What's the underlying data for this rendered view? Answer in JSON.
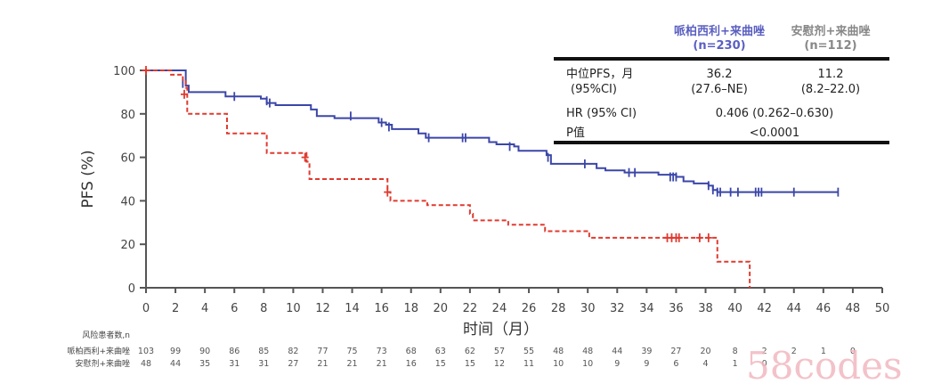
{
  "chart_data": {
    "type": "line",
    "title": "",
    "xlabel": "时间（月）",
    "ylabel": "PFS (%)",
    "xlim": [
      0,
      50
    ],
    "ylim": [
      0,
      100
    ],
    "x_ticks": [
      0,
      2,
      4,
      6,
      8,
      10,
      12,
      14,
      16,
      18,
      20,
      22,
      24,
      26,
      28,
      30,
      32,
      34,
      36,
      38,
      40,
      42,
      44,
      46,
      48,
      50
    ],
    "y_ticks": [
      0,
      20,
      40,
      60,
      80,
      100
    ],
    "grid": false,
    "series": [
      {
        "name": "哌柏西利+来曲唑",
        "color": "#3b46a8",
        "style": "solid",
        "steps": [
          [
            0,
            100
          ],
          [
            2.6,
            100
          ],
          [
            2.7,
            93
          ],
          [
            2.9,
            90
          ],
          [
            5.2,
            90
          ],
          [
            5.4,
            88
          ],
          [
            6.5,
            88
          ],
          [
            7.8,
            87
          ],
          [
            8.2,
            85
          ],
          [
            8.8,
            84
          ],
          [
            11.0,
            84
          ],
          [
            11.2,
            82
          ],
          [
            11.6,
            79
          ],
          [
            12.5,
            79
          ],
          [
            12.8,
            78
          ],
          [
            15.5,
            78
          ],
          [
            15.8,
            76
          ],
          [
            16.3,
            75
          ],
          [
            16.7,
            73
          ],
          [
            18.0,
            73
          ],
          [
            18.5,
            71
          ],
          [
            19.0,
            69
          ],
          [
            22.8,
            69
          ],
          [
            23.3,
            67
          ],
          [
            23.8,
            66
          ],
          [
            25.0,
            65
          ],
          [
            25.3,
            63
          ],
          [
            27.0,
            63
          ],
          [
            27.2,
            61
          ],
          [
            27.5,
            57
          ],
          [
            30.3,
            57
          ],
          [
            30.6,
            55
          ],
          [
            31.2,
            54
          ],
          [
            32.5,
            53
          ],
          [
            34.8,
            52
          ],
          [
            36.0,
            51
          ],
          [
            36.5,
            49
          ],
          [
            37.2,
            48
          ],
          [
            38.2,
            47
          ],
          [
            38.5,
            45
          ],
          [
            38.8,
            44
          ],
          [
            47,
            44
          ]
        ],
        "censor": [
          [
            2.5,
            94
          ],
          [
            6.0,
            88
          ],
          [
            8.2,
            86
          ],
          [
            8.4,
            85
          ],
          [
            13.9,
            79
          ],
          [
            16.0,
            76
          ],
          [
            16.5,
            74
          ],
          [
            19.2,
            69
          ],
          [
            21.5,
            69
          ],
          [
            21.7,
            69
          ],
          [
            24.7,
            65
          ],
          [
            27.3,
            60
          ],
          [
            29.8,
            57
          ],
          [
            32.8,
            53
          ],
          [
            33.2,
            53
          ],
          [
            35.6,
            51
          ],
          [
            35.8,
            51
          ],
          [
            36.0,
            51
          ],
          [
            38.2,
            47
          ],
          [
            38.5,
            45
          ],
          [
            38.8,
            44
          ],
          [
            39.0,
            44
          ],
          [
            39.7,
            44
          ],
          [
            40.2,
            44
          ],
          [
            41.4,
            44
          ],
          [
            41.6,
            44
          ],
          [
            41.8,
            44
          ],
          [
            44.0,
            44
          ],
          [
            47.0,
            44
          ]
        ]
      },
      {
        "name": "安慰剂+来曲唑",
        "color": "#e03a2f",
        "style": "dashed",
        "steps": [
          [
            0,
            100
          ],
          [
            1.5,
            100
          ],
          [
            1.7,
            98
          ],
          [
            2.4,
            98
          ],
          [
            2.5,
            95
          ],
          [
            2.7,
            92
          ],
          [
            2.8,
            80
          ],
          [
            5.3,
            80
          ],
          [
            5.5,
            71
          ],
          [
            8.0,
            71
          ],
          [
            8.2,
            62
          ],
          [
            10.7,
            62
          ],
          [
            10.9,
            58
          ],
          [
            11.1,
            50
          ],
          [
            16.2,
            50
          ],
          [
            16.4,
            44
          ],
          [
            16.6,
            40
          ],
          [
            18.9,
            40
          ],
          [
            19.1,
            38
          ],
          [
            21.8,
            38
          ],
          [
            22.0,
            34
          ],
          [
            22.2,
            31
          ],
          [
            24.4,
            31
          ],
          [
            24.6,
            29
          ],
          [
            26.9,
            29
          ],
          [
            27.1,
            26
          ],
          [
            29.9,
            26
          ],
          [
            30.1,
            23
          ],
          [
            38.6,
            23
          ],
          [
            38.8,
            12
          ],
          [
            41.0,
            12
          ],
          [
            41.0,
            0
          ]
        ],
        "censor": [
          [
            0,
            100
          ],
          [
            2.6,
            89
          ],
          [
            10.8,
            60
          ],
          [
            16.4,
            44
          ],
          [
            35.4,
            23
          ],
          [
            35.7,
            23
          ],
          [
            36.0,
            23
          ],
          [
            36.2,
            23
          ],
          [
            37.6,
            23
          ],
          [
            38.2,
            23
          ]
        ]
      }
    ]
  },
  "summary_table": {
    "col_headers": [
      {
        "name": "哌柏西利+来曲唑",
        "n": "(n=230)"
      },
      {
        "name": "安慰剂+来曲唑",
        "n": "(n=112)"
      }
    ],
    "rows": [
      {
        "label": "中位PFS，月",
        "sublabel": "(95%CI)",
        "values": [
          "36.2",
          "11.2"
        ],
        "subvalues": [
          "(27.6–NE)",
          "(8.2–22.0)"
        ]
      },
      {
        "label": "HR (95% CI)",
        "value": "0.406 (0.262–0.630)"
      },
      {
        "label": "P值",
        "value": "<0.0001"
      }
    ]
  },
  "risk_table": {
    "title": "风险患者数,n",
    "rows": [
      {
        "label": "哌柏西利+来曲唑",
        "values": [
          "103",
          "99",
          "90",
          "86",
          "85",
          "82",
          "77",
          "75",
          "73",
          "68",
          "63",
          "62",
          "57",
          "55",
          "48",
          "48",
          "44",
          "39",
          "27",
          "20",
          "8",
          "2",
          "2",
          "1",
          "0"
        ]
      },
      {
        "label": "安慰剂+来曲唑",
        "values": [
          "48",
          "44",
          "35",
          "31",
          "31",
          "27",
          "21",
          "21",
          "21",
          "16",
          "15",
          "15",
          "12",
          "11",
          "10",
          "10",
          "9",
          "9",
          "6",
          "4",
          "1",
          "0"
        ]
      }
    ]
  },
  "watermark": "58codes"
}
